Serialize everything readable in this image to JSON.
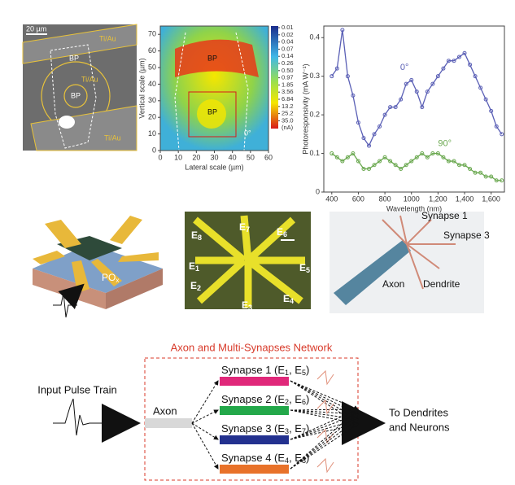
{
  "chart_data": [
    {
      "type": "heatmap",
      "xlabel": "Lateral scale (µm)",
      "ylabel": "Vertical scale (µm)",
      "xlim": [
        0,
        60
      ],
      "xticks": [
        0,
        10,
        20,
        30,
        40,
        50,
        60
      ],
      "ylim": [
        0,
        75
      ],
      "yticks": [
        0,
        10,
        20,
        30,
        40,
        50,
        60,
        70
      ],
      "colorbar_ticks": [
        0.01,
        0.02,
        0.04,
        0.07,
        0.14,
        0.26,
        {
          "value": 0.5,
          "label": "0.50"
        },
        0.97,
        1.85,
        3.56,
        6.84,
        13.2,
        25.2,
        {
          "value": 35,
          "label": "35.0"
        }
      ],
      "colorbar_unit": "(nA)",
      "annotations": [
        "BP",
        "BP",
        "0°"
      ]
    },
    {
      "type": "line",
      "xlabel": "Wavelength (nm)",
      "ylabel": "Photoresponsivity (mA W⁻¹)",
      "x": [
        400,
        440,
        480,
        520,
        560,
        600,
        640,
        680,
        720,
        760,
        800,
        840,
        880,
        920,
        960,
        1000,
        1040,
        1080,
        1120,
        1160,
        1200,
        1240,
        1280,
        1320,
        1360,
        1400,
        1440,
        1480,
        1520,
        1560,
        1600,
        1640,
        1680
      ],
      "series": [
        {
          "name": "0°",
          "color": "#5a5fb5",
          "values": [
            0.3,
            0.32,
            0.42,
            0.3,
            0.25,
            0.18,
            0.14,
            0.12,
            0.15,
            0.17,
            0.2,
            0.22,
            0.22,
            0.24,
            0.28,
            0.29,
            0.26,
            0.22,
            0.26,
            0.28,
            0.3,
            0.32,
            0.34,
            0.34,
            0.35,
            0.36,
            0.33,
            0.3,
            0.27,
            0.24,
            0.21,
            0.17,
            0.15
          ]
        },
        {
          "name": "90°",
          "color": "#6aa84f",
          "values": [
            0.1,
            0.09,
            0.08,
            0.09,
            0.1,
            0.08,
            0.06,
            0.06,
            0.07,
            0.08,
            0.09,
            0.08,
            0.07,
            0.06,
            0.07,
            0.08,
            0.09,
            0.1,
            0.09,
            0.1,
            0.1,
            0.09,
            0.08,
            0.08,
            0.07,
            0.07,
            0.06,
            0.05,
            0.05,
            0.04,
            0.04,
            0.03,
            0.03
          ]
        }
      ],
      "xlim": [
        340,
        1700
      ],
      "xticks": [
        400,
        600,
        800,
        1000,
        {
          "value": 1200,
          "label": "1,200"
        },
        {
          "value": 1400,
          "label": "1,400"
        },
        {
          "value": 1600,
          "label": "1,600"
        }
      ],
      "ylim": [
        0,
        0.43
      ],
      "yticks": [
        0,
        0.1,
        0.2,
        0.3,
        0.4
      ]
    }
  ],
  "micrograph": {
    "scale": "20 µm",
    "labels": [
      "Ti/Au",
      "Ti/Au",
      "Ti/Au",
      "BP",
      "BP"
    ]
  },
  "device": {
    "label": [
      "PO",
      "x"
    ]
  },
  "electrodes": [
    [
      "E",
      "8"
    ],
    [
      "E",
      "7"
    ],
    [
      "E",
      "6"
    ],
    [
      "E",
      "1"
    ],
    [
      "E",
      "5"
    ],
    [
      "E",
      "2"
    ],
    [
      "E",
      "3"
    ],
    [
      "E",
      "4"
    ]
  ],
  "neuron": {
    "labels": [
      "Synapse 1",
      "Synapse 3",
      "Axon",
      "Dendrite"
    ]
  },
  "network": {
    "title": "Axon and Multi-Synapses Network",
    "input": "Input Pulse Train",
    "axon": "Axon",
    "synapses": [
      {
        "label": [
          "Synapse 1 (E",
          "1",
          ", E",
          "5",
          ")"
        ],
        "color": "#e0287a"
      },
      {
        "label": [
          "Synapse 2 (E",
          "2",
          ", E",
          "6",
          ")"
        ],
        "color": "#23a84a"
      },
      {
        "label": [
          "Synapse 3 (E",
          "3",
          ", E",
          "7",
          ")"
        ],
        "color": "#23318f"
      },
      {
        "label": [
          "Synapse 4 (E",
          "4",
          ", E",
          "8",
          ")"
        ],
        "color": "#e8722a"
      }
    ],
    "output": [
      "To Dendrites",
      "and Neurons"
    ]
  }
}
